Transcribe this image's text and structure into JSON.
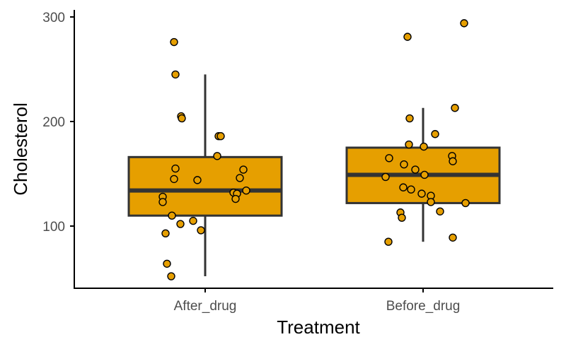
{
  "chart_data": {
    "type": "boxplot",
    "title": "",
    "xlabel": "Treatment",
    "ylabel": "Cholesterol",
    "ylim": [
      40,
      305
    ],
    "yticks": [
      100,
      200,
      300
    ],
    "ytick_labels": [
      "100",
      "200",
      "300"
    ],
    "categories": [
      "After_drug",
      "Before_drug"
    ],
    "colors": {
      "fill": "#E69F00",
      "line": "#333333",
      "point_edge": "#000000",
      "axis": "#000000"
    },
    "boxes": [
      {
        "category": "After_drug",
        "whisker_low": 52,
        "q1": 110,
        "median": 134,
        "q3": 166,
        "whisker_high": 245
      },
      {
        "category": "Before_drug",
        "whisker_low": 85,
        "q1": 122,
        "median": 149,
        "q3": 175,
        "whisker_high": 213
      }
    ],
    "points": [
      {
        "category": "After_drug",
        "values": [
          276,
          245,
          205,
          203,
          186,
          186,
          167,
          155,
          154,
          146,
          145,
          144,
          134,
          132,
          131,
          128,
          126,
          123,
          110,
          105,
          102,
          96,
          93,
          64,
          52
        ]
      },
      {
        "category": "Before_drug",
        "values": [
          294,
          281,
          213,
          203,
          188,
          178,
          176,
          167,
          165,
          162,
          159,
          154,
          149,
          147,
          137,
          135,
          131,
          129,
          123,
          122,
          114,
          113,
          108,
          89,
          85
        ]
      }
    ]
  }
}
